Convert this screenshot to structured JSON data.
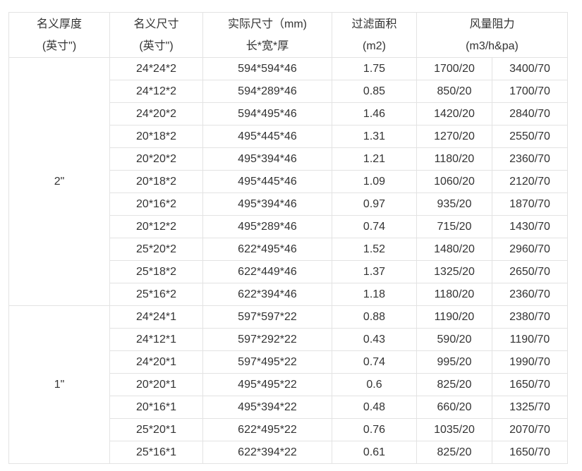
{
  "header": {
    "thickness": [
      "名义厚度",
      "(英寸\")"
    ],
    "nominal_size": [
      "名义尺寸",
      "(英寸\")"
    ],
    "actual_size": [
      "实际尺寸（mm)",
      "长*宽*厚"
    ],
    "filter_area": [
      "过滤面积",
      "(m2)"
    ],
    "air_resistance": [
      "风量阻力",
      "(m3/h&pa)"
    ]
  },
  "groups": [
    {
      "thickness": "2\"",
      "rows": [
        [
          "24*24*2",
          "594*594*46",
          "1.75",
          "1700/20",
          "3400/70"
        ],
        [
          "24*12*2",
          "594*289*46",
          "0.85",
          "850/20",
          "1700/70"
        ],
        [
          "24*20*2",
          "594*495*46",
          "1.46",
          "1420/20",
          "2840/70"
        ],
        [
          "20*18*2",
          "495*445*46",
          "1.31",
          "1270/20",
          "2550/70"
        ],
        [
          "20*20*2",
          "495*394*46",
          "1.21",
          "1180/20",
          "2360/70"
        ],
        [
          "20*18*2",
          "495*445*46",
          "1.09",
          "1060/20",
          "2120/70"
        ],
        [
          "20*16*2",
          "495*394*46",
          "0.97",
          "935/20",
          "1870/70"
        ],
        [
          "20*12*2",
          "495*289*46",
          "0.74",
          "715/20",
          "1430/70"
        ],
        [
          "25*20*2",
          "622*495*46",
          "1.52",
          "1480/20",
          "2960/70"
        ],
        [
          "25*18*2",
          "622*449*46",
          "1.37",
          "1325/20",
          "2650/70"
        ],
        [
          "25*16*2",
          "622*394*46",
          "1.18",
          "1180/20",
          "2360/70"
        ]
      ]
    },
    {
      "thickness": "1\"",
      "rows": [
        [
          "24*24*1",
          "597*597*22",
          "0.88",
          "1190/20",
          "2380/70"
        ],
        [
          "24*12*1",
          "597*292*22",
          "0.43",
          "590/20",
          "1190/70"
        ],
        [
          "24*20*1",
          "597*495*22",
          "0.74",
          "995/20",
          "1990/70"
        ],
        [
          "20*20*1",
          "495*495*22",
          "0.6",
          "825/20",
          "1650/70"
        ],
        [
          "20*16*1",
          "495*394*22",
          "0.48",
          "660/20",
          "1325/70"
        ],
        [
          "25*20*1",
          "622*495*22",
          "0.76",
          "1035/20",
          "2070/70"
        ],
        [
          "25*16*1",
          "622*394*22",
          "0.61",
          "825/20",
          "1650/70"
        ]
      ]
    }
  ]
}
